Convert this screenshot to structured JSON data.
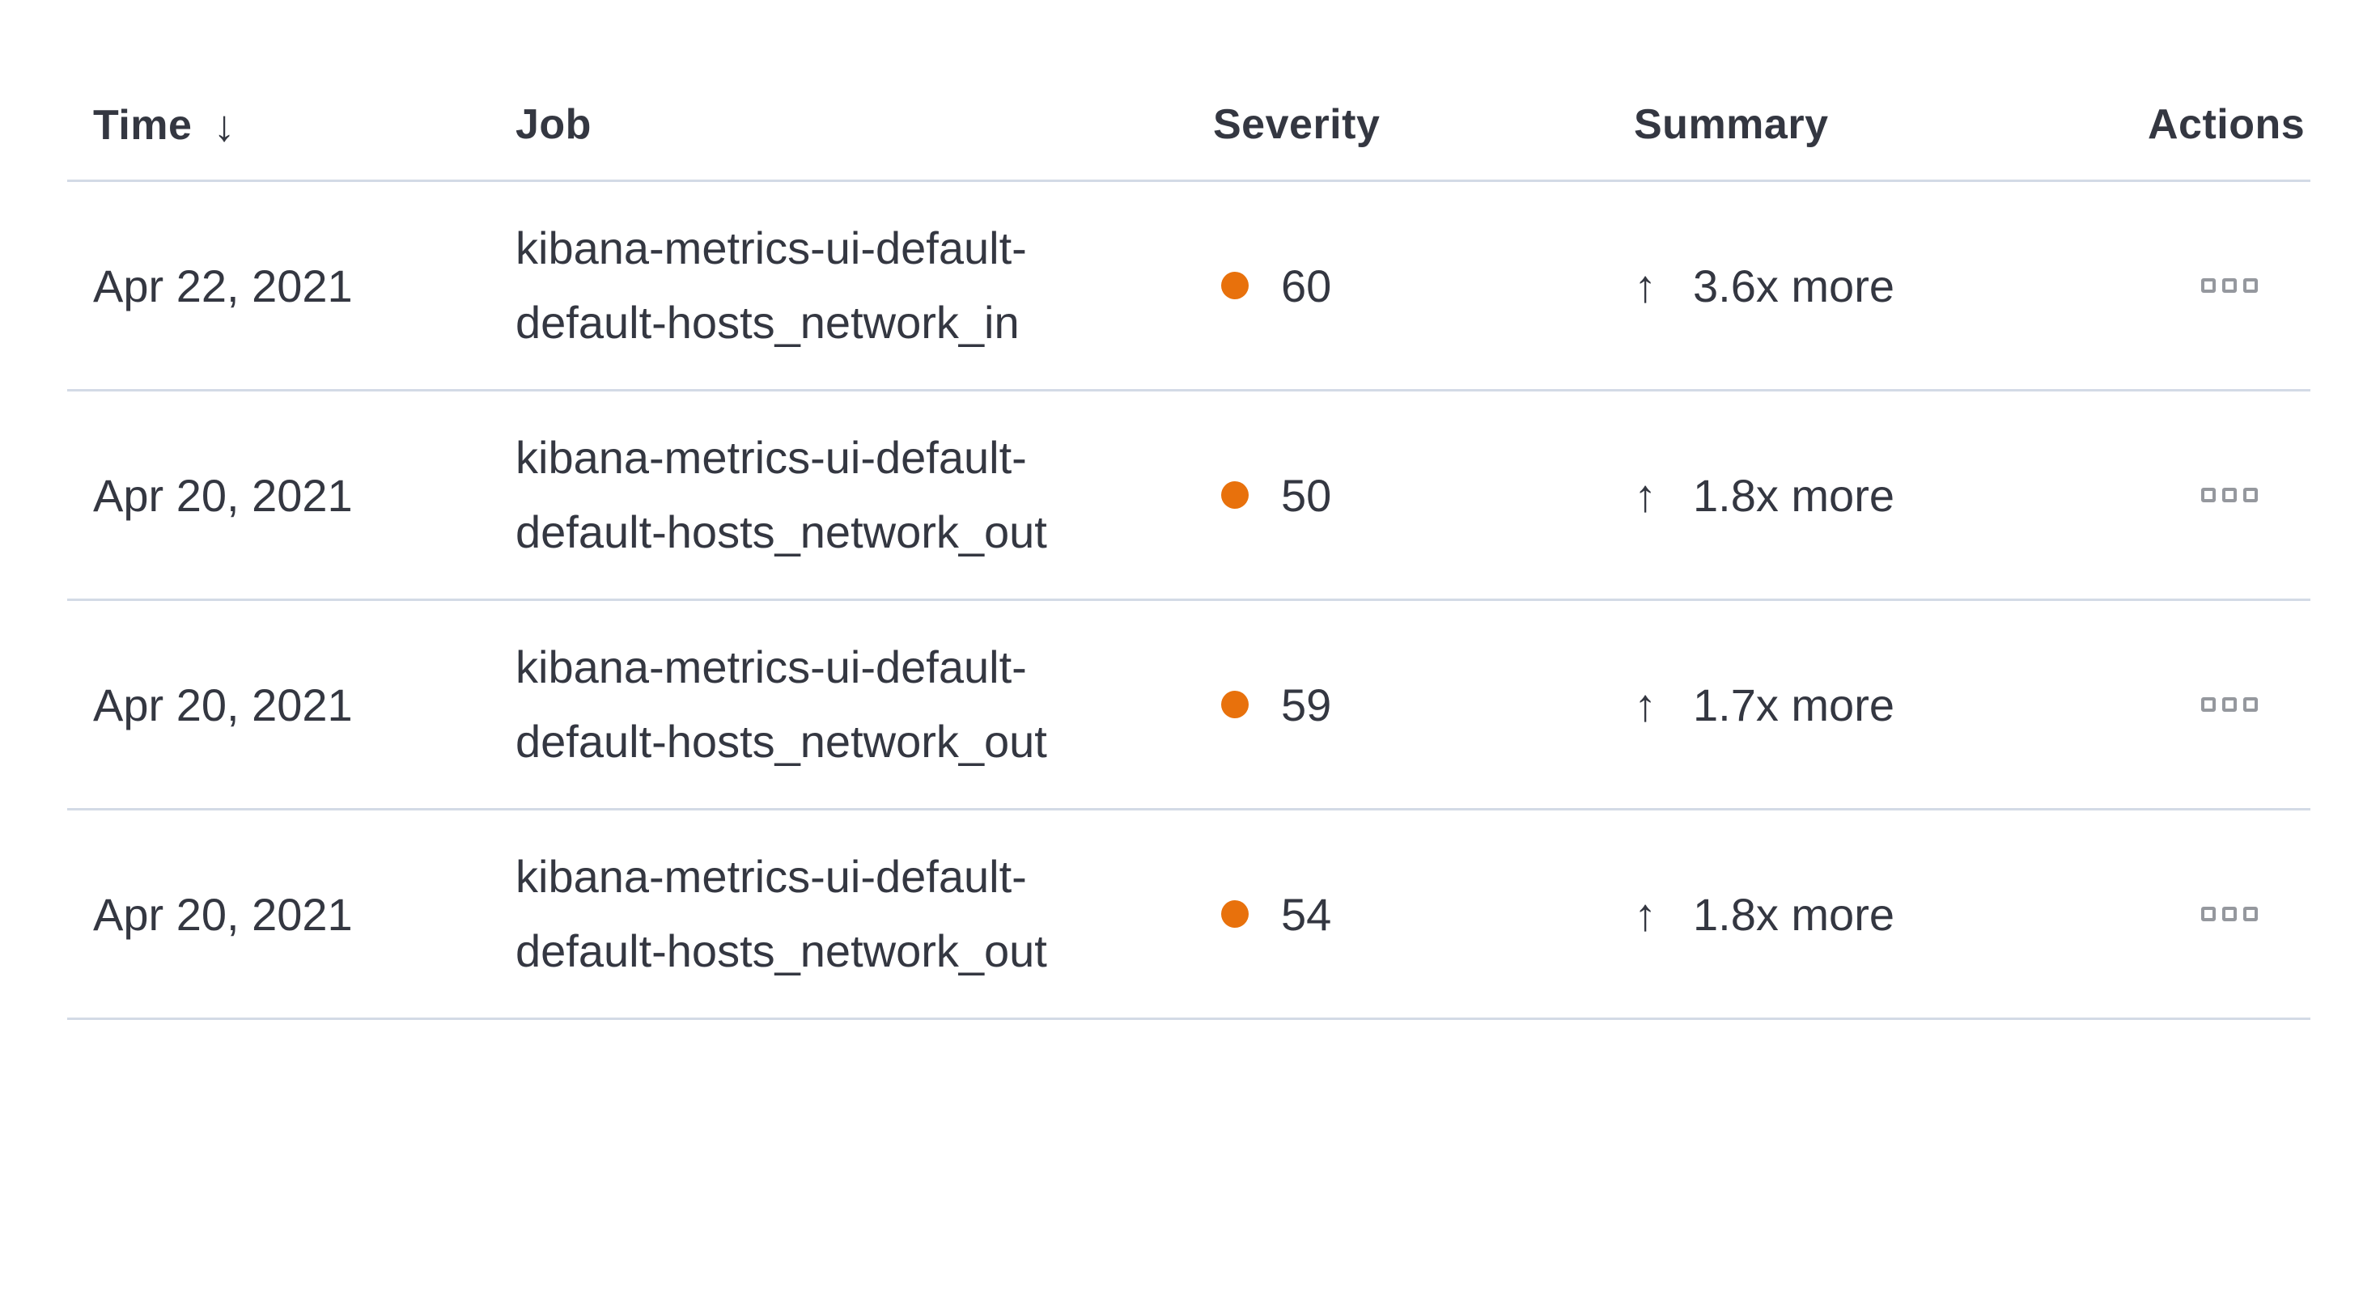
{
  "table": {
    "columns": {
      "time": {
        "label": "Time",
        "sort_icon": "↓",
        "sorted": "descending"
      },
      "job": {
        "label": "Job"
      },
      "severity": {
        "label": "Severity"
      },
      "summary": {
        "label": "Summary"
      },
      "actions": {
        "label": "Actions"
      }
    },
    "rows": [
      {
        "time": "Apr 22, 2021",
        "job_line1": "kibana-metrics-ui-default-",
        "job_line2": "default-hosts_network_in",
        "severity": "60",
        "summary_direction": "↑",
        "summary": "3.6x more"
      },
      {
        "time": "Apr 20, 2021",
        "job_line1": "kibana-metrics-ui-default-",
        "job_line2": "default-hosts_network_out",
        "severity": "50",
        "summary_direction": "↑",
        "summary": "1.8x more"
      },
      {
        "time": "Apr 20, 2021",
        "job_line1": "kibana-metrics-ui-default-",
        "job_line2": "default-hosts_network_out",
        "severity": "59",
        "summary_direction": "↑",
        "summary": "1.7x more"
      },
      {
        "time": "Apr 20, 2021",
        "job_line1": "kibana-metrics-ui-default-",
        "job_line2": "default-hosts_network_out",
        "severity": "54",
        "summary_direction": "↑",
        "summary": "1.8x more"
      }
    ],
    "colors": {
      "severity_dot": "#e8710c",
      "divider": "#d3dae6",
      "text": "#343741",
      "actions_icon": "#95989e"
    },
    "icons": {
      "sort_descending": "arrow-down",
      "trend_up": "arrow-up",
      "row_actions": "boxes-horizontal"
    }
  }
}
